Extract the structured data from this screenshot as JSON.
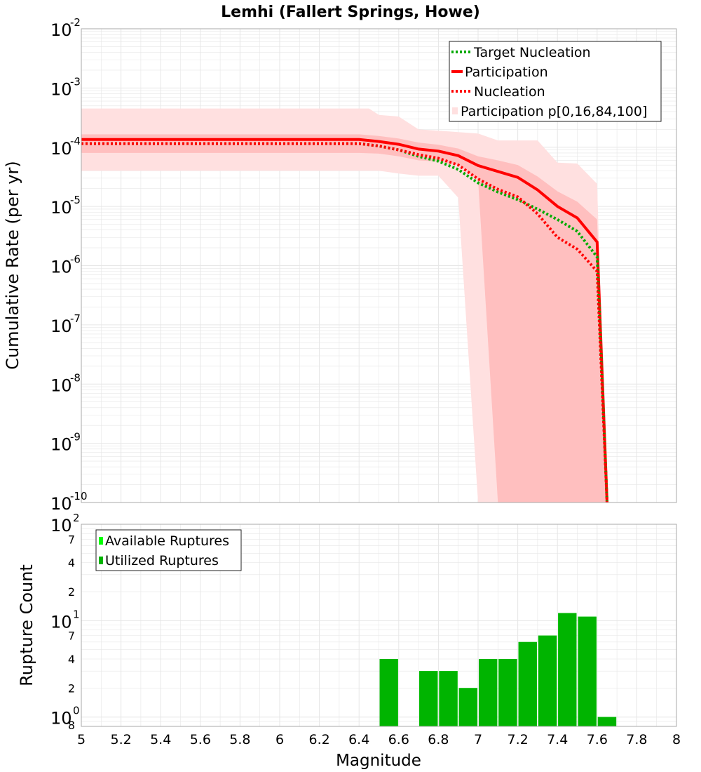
{
  "title": "Lemhi (Fallert Springs, Howe)",
  "colors": {
    "participation": "#ff0000",
    "target_nucleation": "#00aa00",
    "nucleation": "#ff0000",
    "band_outer": "#ffe0e0",
    "band_inner": "#ffbfbf",
    "available_ruptures": "#00ff00",
    "utilized_ruptures": "#00b400",
    "grid": "#e6e6e6",
    "frame": "#aaaaaa"
  },
  "chart_data": [
    {
      "type": "line",
      "ylabel": "Cumulative Rate (per yr)",
      "xlim": [
        5,
        8
      ],
      "ylim": [
        1e-10,
        0.01
      ],
      "yscale": "log",
      "grid": true,
      "legend_position": "top-right",
      "y_ticks": [
        {
          "base": "10",
          "exp": "-10",
          "value": 1e-10
        },
        {
          "base": "10",
          "exp": "-9",
          "value": 1e-09
        },
        {
          "base": "10",
          "exp": "-8",
          "value": 1e-08
        },
        {
          "base": "10",
          "exp": "-7",
          "value": 1e-07
        },
        {
          "base": "10",
          "exp": "-6",
          "value": 1e-06
        },
        {
          "base": "10",
          "exp": "-5",
          "value": 1e-05
        },
        {
          "base": "10",
          "exp": "-4",
          "value": 0.0001
        },
        {
          "base": "10",
          "exp": "-3",
          "value": 0.001
        },
        {
          "base": "10",
          "exp": "-2",
          "value": 0.01
        }
      ],
      "legend": [
        {
          "label": "Target Nucleation",
          "style": "dotted",
          "color": "#00aa00"
        },
        {
          "label": "Participation",
          "style": "solid",
          "color": "#ff0000"
        },
        {
          "label": "Nucleation",
          "style": "dotted",
          "color": "#ff0000"
        },
        {
          "label": "Participation p[0,16,84,100]",
          "style": "band",
          "color": "#ffd8d8"
        }
      ],
      "series": [
        {
          "name": "Participation p[0,16,84,100]",
          "kind": "band",
          "x": [
            5.0,
            6.4,
            6.45,
            6.5,
            6.6,
            6.7,
            6.8,
            6.9,
            7.0,
            7.1,
            7.2,
            7.3,
            7.4,
            7.5,
            7.6,
            7.65
          ],
          "upper": [
            0.00045,
            0.00045,
            0.00045,
            0.00035,
            0.00033,
            0.0002,
            0.00019,
            0.00018,
            0.00017,
            0.00013,
            0.00013,
            0.00013,
            5.5e-05,
            5.3e-05,
            2.4e-05,
            1e-10
          ],
          "lower": [
            4e-05,
            4e-05,
            4e-05,
            4e-05,
            3.6e-05,
            3.3e-05,
            3.3e-05,
            1.4e-05,
            1e-10,
            1e-10,
            1e-10,
            1e-10,
            1e-10,
            1e-10,
            1e-10,
            1e-10
          ]
        },
        {
          "name": "Participation p[16,84]",
          "kind": "band-inner",
          "x": [
            5.0,
            6.4,
            6.5,
            6.6,
            6.7,
            6.8,
            6.9,
            7.0,
            7.1,
            7.2,
            7.3,
            7.4,
            7.5,
            7.6,
            7.65
          ],
          "upper": [
            0.000165,
            0.000165,
            0.000155,
            0.00014,
            0.00012,
            0.00011,
            9.5e-05,
            7e-05,
            6e-05,
            5e-05,
            3.2e-05,
            1.8e-05,
            1.2e-05,
            6e-06,
            1e-10
          ],
          "lower": [
            8e-05,
            8e-05,
            7.8e-05,
            7e-05,
            6e-05,
            5.7e-05,
            5e-05,
            2.8e-05,
            1e-10,
            1e-10,
            1e-10,
            1e-10,
            1e-10,
            1e-10,
            1e-10
          ]
        },
        {
          "name": "Participation",
          "kind": "line",
          "x": [
            5.0,
            6.4,
            6.5,
            6.6,
            6.7,
            6.8,
            6.9,
            7.0,
            7.1,
            7.2,
            7.3,
            7.4,
            7.5,
            7.6,
            7.65
          ],
          "y": [
            0.000135,
            0.000135,
            0.000125,
            0.000112,
            9.3e-05,
            8.6e-05,
            7.2e-05,
            4.9e-05,
            3.9e-05,
            3.1e-05,
            1.9e-05,
            1e-05,
            6.4e-06,
            2.5e-06,
            1e-10
          ]
        },
        {
          "name": "Target Nucleation",
          "kind": "dotted",
          "x": [
            5.0,
            6.4,
            6.5,
            6.6,
            6.7,
            6.8,
            6.9,
            7.0,
            7.1,
            7.2,
            7.3,
            7.4,
            7.5,
            7.6,
            7.65
          ],
          "y": [
            0.000115,
            0.000115,
            0.000105,
            9e-05,
            7e-05,
            5.8e-05,
            4.2e-05,
            2.5e-05,
            1.75e-05,
            1.3e-05,
            9e-06,
            6e-06,
            3.8e-06,
            1.4e-06,
            1e-10
          ]
        },
        {
          "name": "Nucleation",
          "kind": "dotted",
          "x": [
            5.0,
            6.4,
            6.5,
            6.6,
            6.7,
            6.8,
            6.9,
            7.0,
            7.1,
            7.2,
            7.3,
            7.4,
            7.5,
            7.6,
            7.65
          ],
          "y": [
            0.000115,
            0.000115,
            0.000105,
            9e-05,
            7.5e-05,
            6.5e-05,
            5e-05,
            2.9e-05,
            1.95e-05,
            1.45e-05,
            7.5e-06,
            3e-06,
            1.9e-06,
            8e-07,
            1e-10
          ]
        }
      ]
    },
    {
      "type": "bar",
      "xlabel": "Magnitude",
      "ylabel": "Rupture Count",
      "xlim": [
        5,
        8
      ],
      "ylim": [
        0.8,
        100
      ],
      "yscale": "log",
      "grid": true,
      "legend_position": "top-left",
      "x_tick_labels": [
        "5",
        "5.2",
        "5.4",
        "5.6",
        "5.8",
        "6",
        "6.2",
        "6.4",
        "6.6",
        "6.8",
        "7",
        "7.2",
        "7.4",
        "7.6",
        "7.8",
        "8"
      ],
      "y_major_ticks": [
        {
          "base": "10",
          "exp": "0",
          "value": 1
        },
        {
          "base": "10",
          "exp": "1",
          "value": 10
        },
        {
          "base": "10",
          "exp": "2",
          "value": 100
        }
      ],
      "y_minor_ticks": [
        {
          "label": "8",
          "value": 0.8
        },
        {
          "label": "2",
          "value": 2
        },
        {
          "label": "4",
          "value": 4
        },
        {
          "label": "7",
          "value": 7
        },
        {
          "label": "2",
          "value": 20
        },
        {
          "label": "4",
          "value": 40
        },
        {
          "label": "7",
          "value": 70
        }
      ],
      "legend": [
        {
          "label": "Available Ruptures",
          "color": "#00ff00"
        },
        {
          "label": "Utilized Ruptures",
          "color": "#00b400"
        }
      ],
      "bar_width": 0.1,
      "series": [
        {
          "name": "Available Ruptures",
          "x": [
            6.55,
            6.75,
            6.85,
            6.95,
            7.05,
            7.15,
            7.25,
            7.35,
            7.45,
            7.55,
            7.65
          ],
          "values": [
            4,
            3,
            3,
            2,
            4,
            4,
            6,
            7,
            12,
            11,
            1
          ]
        },
        {
          "name": "Utilized Ruptures",
          "x": [
            6.55,
            6.75,
            6.85,
            6.95,
            7.05,
            7.15,
            7.25,
            7.35,
            7.45,
            7.55,
            7.65
          ],
          "values": [
            4,
            3,
            3,
            2,
            4,
            4,
            6,
            7,
            12,
            11,
            1
          ]
        }
      ]
    }
  ]
}
